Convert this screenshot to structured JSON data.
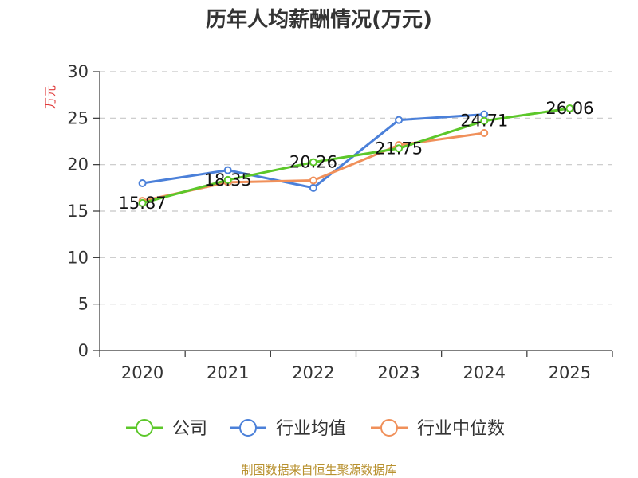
{
  "chart_data": {
    "type": "line",
    "title": "历年人均薪酬情况(万元)",
    "ylabel": "万元",
    "xlabel": "",
    "categories": [
      "2020",
      "2021",
      "2022",
      "2023",
      "2024",
      "2025"
    ],
    "ylim": [
      0,
      30
    ],
    "yticks": [
      0,
      5,
      10,
      15,
      20,
      25,
      30
    ],
    "grid": true,
    "legend_position": "bottom",
    "series": [
      {
        "name": "公司",
        "color": "#5cc72a",
        "values": [
          15.87,
          18.35,
          20.26,
          21.75,
          24.71,
          26.06
        ],
        "data_labels": [
          "15.87",
          "18.35",
          "20.26",
          "21.75",
          "24.71",
          "26.06"
        ]
      },
      {
        "name": "行业均值",
        "color": "#4b80d9",
        "values": [
          18.0,
          19.4,
          17.5,
          24.8,
          25.4,
          null
        ]
      },
      {
        "name": "行业中位数",
        "color": "#f0905a",
        "values": [
          16.1,
          18.1,
          18.3,
          22.1,
          23.4,
          null
        ]
      }
    ]
  },
  "source": "制图数据来自恒生聚源数据库"
}
